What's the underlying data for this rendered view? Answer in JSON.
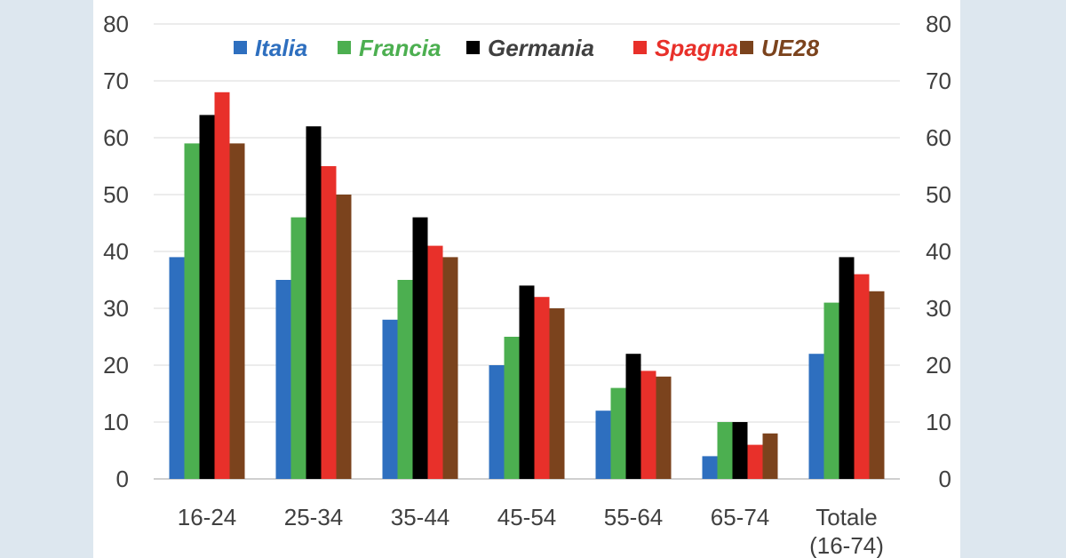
{
  "chart_data": {
    "type": "bar",
    "categories": [
      "16-24",
      "25-34",
      "35-44",
      "45-54",
      "55-64",
      "65-74",
      "Totale (16-74)"
    ],
    "series": [
      {
        "name": "Italia",
        "color": "#2e6fbf",
        "values": [
          39,
          35,
          28,
          20,
          12,
          4,
          22
        ]
      },
      {
        "name": "Francia",
        "color": "#4caf50",
        "values": [
          59,
          46,
          35,
          25,
          16,
          10,
          31
        ]
      },
      {
        "name": "Germania",
        "color": "#000000",
        "values": [
          64,
          62,
          46,
          34,
          22,
          10,
          39
        ]
      },
      {
        "name": "Spagna",
        "color": "#e8302a",
        "values": [
          68,
          55,
          41,
          32,
          19,
          6,
          36
        ]
      },
      {
        "name": "UE28",
        "color": "#7b431d",
        "values": [
          59,
          50,
          39,
          30,
          18,
          8,
          33
        ]
      }
    ],
    "y_ticks": [
      "0",
      "10",
      "20",
      "30",
      "40",
      "50",
      "60",
      "70",
      "80"
    ],
    "ylim": [
      0,
      80
    ],
    "grid": true,
    "legend_position": "top",
    "secondary_y_axis": true
  }
}
